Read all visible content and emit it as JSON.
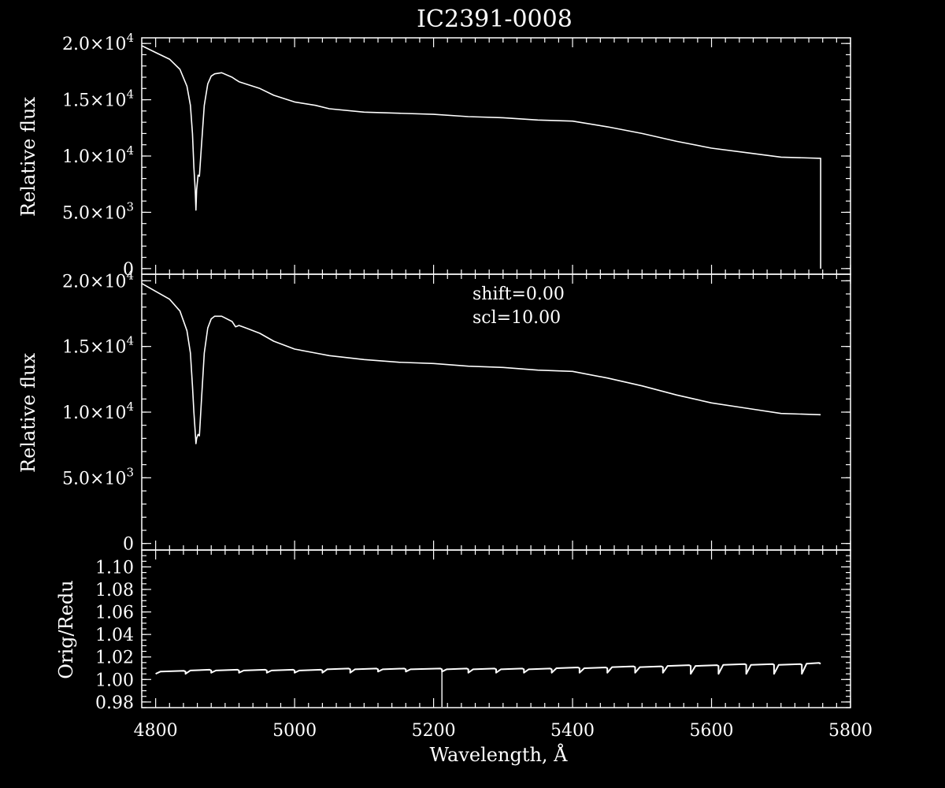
{
  "title": "IC2391-0008",
  "colors": {
    "background": "#000000",
    "foreground": "#ffffff"
  },
  "chart_data": [
    {
      "type": "line",
      "panel": "top",
      "ylabel": "Relative flux",
      "xlim": [
        4780,
        5800
      ],
      "ylim": [
        -500,
        20500
      ],
      "yticks": [
        {
          "value": 0,
          "m": "0",
          "e": ""
        },
        {
          "value": 5000,
          "m": "5.0×10",
          "e": "3"
        },
        {
          "value": 10000,
          "m": "1.0×10",
          "e": "4"
        },
        {
          "value": 15000,
          "m": "1.5×10",
          "e": "4"
        },
        {
          "value": 20000,
          "m": "2.0×10",
          "e": "4"
        }
      ],
      "series": [
        {
          "x": [
            4780,
            4800,
            4820,
            4835,
            4845,
            4850,
            4853,
            4855,
            4857,
            4858,
            4859,
            4861,
            4863,
            4866,
            4870,
            4875,
            4880,
            4885,
            4895,
            4910,
            4915,
            4920,
            4930,
            4950,
            4970,
            5000,
            5030,
            5050,
            5100,
            5150,
            5200,
            5250,
            5300,
            5350,
            5400,
            5450,
            5500,
            5550,
            5600,
            5650,
            5700,
            5757,
            5757
          ],
          "y": [
            19800,
            19200,
            18600,
            17700,
            16200,
            14500,
            12000,
            9000,
            7000,
            5200,
            7000,
            8300,
            8200,
            11000,
            14500,
            16400,
            17100,
            17300,
            17400,
            17000,
            16800,
            16600,
            16400,
            16000,
            15400,
            14800,
            14500,
            14200,
            13900,
            13800,
            13700,
            13500,
            13400,
            13200,
            13100,
            12600,
            12000,
            11300,
            10700,
            10300,
            9900,
            9800,
            0
          ]
        }
      ]
    },
    {
      "type": "line",
      "panel": "middle",
      "ylabel": "Relative flux",
      "xlim": [
        4780,
        5800
      ],
      "ylim": [
        -500,
        20500
      ],
      "yticks": [
        {
          "value": 0,
          "m": "0",
          "e": ""
        },
        {
          "value": 5000,
          "m": "5.0×10",
          "e": "3"
        },
        {
          "value": 10000,
          "m": "1.0×10",
          "e": "4"
        },
        {
          "value": 15000,
          "m": "1.5×10",
          "e": "4"
        },
        {
          "value": 20000,
          "m": "2.0×10",
          "e": "4"
        }
      ],
      "annotations": [
        "shift=0.00",
        "scl=10.00"
      ],
      "series": [
        {
          "x": [
            4780,
            4800,
            4820,
            4835,
            4845,
            4850,
            4853,
            4855,
            4857,
            4858,
            4859,
            4861,
            4863,
            4866,
            4870,
            4875,
            4880,
            4885,
            4895,
            4910,
            4915,
            4920,
            4930,
            4950,
            4970,
            5000,
            5030,
            5050,
            5100,
            5150,
            5200,
            5250,
            5300,
            5350,
            5400,
            5450,
            5500,
            5550,
            5600,
            5650,
            5700,
            5757
          ],
          "y": [
            19800,
            19200,
            18600,
            17700,
            16200,
            14500,
            12000,
            10000,
            8500,
            7600,
            8000,
            8300,
            8200,
            11000,
            14500,
            16400,
            17100,
            17300,
            17300,
            16900,
            16500,
            16600,
            16400,
            16000,
            15400,
            14800,
            14500,
            14300,
            14000,
            13800,
            13700,
            13500,
            13400,
            13200,
            13100,
            12600,
            12000,
            11300,
            10700,
            10300,
            9900,
            9800
          ]
        }
      ]
    },
    {
      "type": "line",
      "panel": "bottom",
      "ylabel": "Orig/Redu",
      "xlabel": "Wavelength, Å",
      "xlim": [
        4780,
        5800
      ],
      "ylim": [
        0.975,
        1.115
      ],
      "xticks": [
        4800,
        5000,
        5200,
        5400,
        5600,
        5800
      ],
      "yticks": [
        "0.98",
        "1.00",
        "1.02",
        "1.04",
        "1.06",
        "1.08",
        "1.10"
      ],
      "segment_edges": [
        4800,
        4843,
        4880,
        4920,
        4960,
        5000,
        5040,
        5080,
        5120,
        5160,
        5212,
        5250,
        5290,
        5330,
        5370,
        5410,
        5450,
        5490,
        5530,
        5570,
        5610,
        5650,
        5690,
        5730,
        5757
      ],
      "segment_low": [
        1.005,
        1.005,
        1.006,
        1.006,
        1.006,
        1.006,
        1.006,
        1.006,
        1.007,
        1.007,
        1.007,
        1.006,
        1.006,
        1.006,
        1.006,
        1.006,
        1.006,
        1.006,
        1.006,
        1.005,
        1.005,
        1.005,
        1.005,
        1.005
      ],
      "segment_high": [
        1.007,
        1.008,
        1.008,
        1.008,
        1.008,
        1.008,
        1.009,
        1.009,
        1.009,
        1.009,
        1.009,
        1.009,
        1.009,
        1.009,
        1.01,
        1.01,
        1.011,
        1.011,
        1.012,
        1.012,
        1.013,
        1.013,
        1.013,
        1.014
      ],
      "spike": {
        "x": 5212,
        "y": 0.975
      }
    }
  ]
}
